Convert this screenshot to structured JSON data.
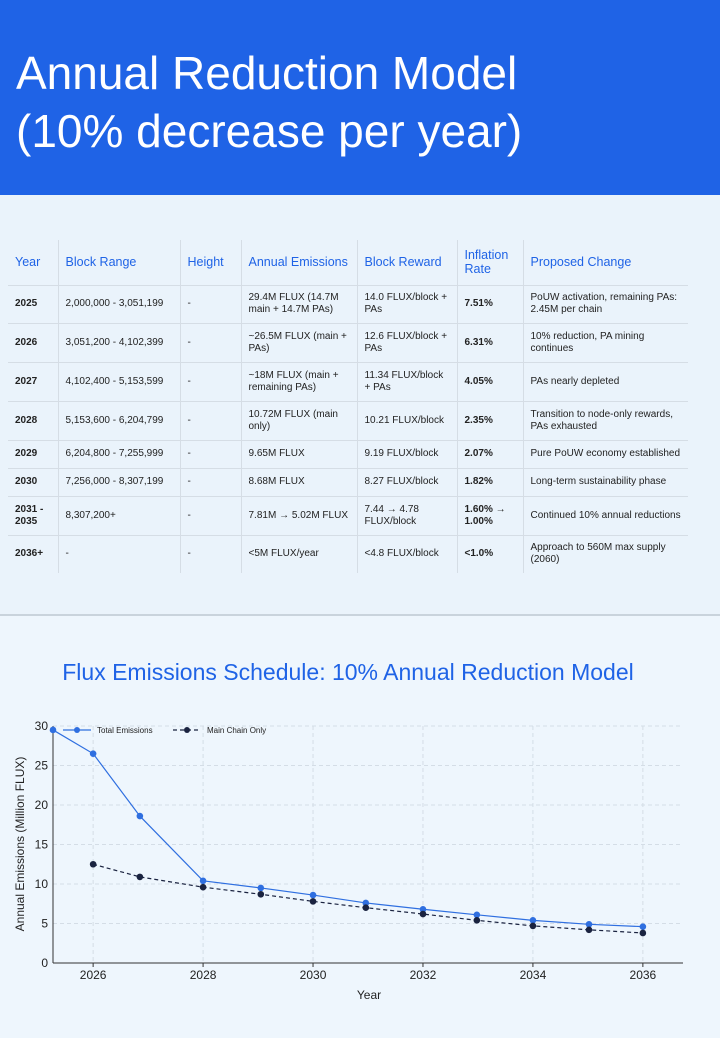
{
  "header": {
    "title": "Annual Reduction Model (10% decrease per year)"
  },
  "table": {
    "columns": [
      "Year",
      "Block Range",
      "Height",
      "Annual Emissions",
      "Block Reward",
      "Inflation Rate",
      "Proposed Change"
    ],
    "rows": [
      [
        "2025",
        "2,000,000 - 3,051,199",
        "-",
        "29.4M FLUX (14.7M main + 14.7M PAs)",
        "14.0 FLUX/block + PAs",
        "7.51%",
        "PoUW activation, remaining PAs: 2.45M per chain"
      ],
      [
        "2026",
        "3,051,200 - 4,102,399",
        "-",
        "~26.5M FLUX (main + PAs)",
        "12.6 FLUX/block + PAs",
        "6.31%",
        "10% reduction, PA mining continues"
      ],
      [
        "2027",
        "4,102,400 - 5,153,599",
        "-",
        "~18M FLUX (main + remaining PAs)",
        "11.34 FLUX/block + PAs",
        "4.05%",
        "PAs nearly depleted"
      ],
      [
        "2028",
        "5,153,600 - 6,204,799",
        "-",
        "10.72M FLUX (main only)",
        "10.21 FLUX/block",
        "2.35%",
        "Transition to node-only rewards, PAs exhausted"
      ],
      [
        "2029",
        "6,204,800 - 7,255,999",
        "-",
        "9.65M FLUX",
        "9.19 FLUX/block",
        "2.07%",
        "Pure PoUW economy established"
      ],
      [
        "2030",
        "7,256,000 - 8,307,199",
        "-",
        "8.68M FLUX",
        "8.27 FLUX/block",
        "1.82%",
        "Long-term sustainability phase"
      ],
      [
        "2031 - 2035",
        "8,307,200+",
        "-",
        "7.81M → 5.02M FLUX",
        "7.44 → 4.78 FLUX/block",
        "1.60% → 1.00%",
        "Continued 10% annual reductions"
      ],
      [
        "2036+",
        "-",
        "-",
        "<5M FLUX/year",
        "<4.8 FLUX/block",
        "<1.0%",
        "Approach to 560M max supply (2060)"
      ]
    ]
  },
  "chart_data": {
    "type": "line",
    "title": "Flux Emissions Schedule: 10% Annual Reduction Model",
    "x_label": "Year",
    "y_label": "Annual Emissions (Million FLUX)",
    "x": [
      2025.27,
      2026,
      2026.85,
      2028,
      2029.05,
      2030,
      2030.96,
      2032,
      2032.98,
      2034,
      2035.02,
      2036
    ],
    "series": [
      {
        "name": "Total Emissions",
        "color": "#2f6fe0",
        "dashed": false,
        "values": [
          29.5,
          26.5,
          18.6,
          10.4,
          9.5,
          8.6,
          7.6,
          6.8,
          6.1,
          5.4,
          4.9,
          4.6
        ]
      },
      {
        "name": "Main Chain Only",
        "color": "#1a2340",
        "dashed": true,
        "values": [
          null,
          12.5,
          10.9,
          9.6,
          8.7,
          7.8,
          7.0,
          6.2,
          5.4,
          4.7,
          4.2,
          3.8
        ]
      }
    ],
    "xlim": [
      2025.27,
      2036.73
    ],
    "ylim": [
      0,
      30
    ],
    "xticks": [
      2026,
      2028,
      2030,
      2032,
      2034,
      2036
    ],
    "yticks": [
      0,
      5,
      10,
      15,
      20,
      25,
      30
    ],
    "grid": true
  }
}
